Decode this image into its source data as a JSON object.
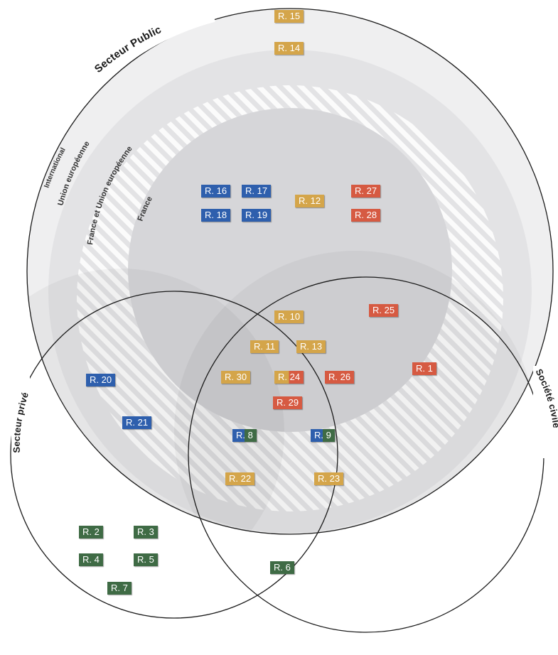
{
  "sets": {
    "public": "Secteur Public",
    "prive": "Secteur privé",
    "civile": "Société civile"
  },
  "levels": {
    "international": "International",
    "ue": "Union européenne",
    "france_ue": "France et Union européenne",
    "france": "France"
  },
  "colors": {
    "yellow": "#d4a54a",
    "blue": "#2e5fad",
    "red": "#d65a42",
    "green": "#3f6b45",
    "ring_outer": "#efeff0",
    "ring_mid": "#e3e3e5",
    "ring_inner": "#d6d6d9"
  },
  "tags": [
    {
      "id": "r15",
      "label": "R. 15",
      "color": "yellow"
    },
    {
      "id": "r14",
      "label": "R. 14",
      "color": "yellow"
    },
    {
      "id": "r16",
      "label": "R. 16",
      "color": "blue"
    },
    {
      "id": "r17",
      "label": "R. 17",
      "color": "blue"
    },
    {
      "id": "r18",
      "label": "R. 18",
      "color": "blue"
    },
    {
      "id": "r19",
      "label": "R. 19",
      "color": "blue"
    },
    {
      "id": "r12",
      "label": "R. 12",
      "color": "yellow"
    },
    {
      "id": "r27",
      "label": "R. 27",
      "color": "red"
    },
    {
      "id": "r28",
      "label": "R. 28",
      "color": "red"
    },
    {
      "id": "r10",
      "label": "R. 10",
      "color": "yellow"
    },
    {
      "id": "r25",
      "label": "R. 25",
      "color": "red"
    },
    {
      "id": "r11",
      "label": "R. 11",
      "color": "yellow"
    },
    {
      "id": "r13",
      "label": "R. 13",
      "color": "yellow"
    },
    {
      "id": "r1",
      "label": "R. 1",
      "color": "red"
    },
    {
      "id": "r20",
      "label": "R. 20",
      "color": "blue"
    },
    {
      "id": "r30",
      "label": "R. 30",
      "color": "yellow"
    },
    {
      "id": "r24",
      "label": "R. 24",
      "color": "yellow-red"
    },
    {
      "id": "r26",
      "label": "R. 26",
      "color": "red"
    },
    {
      "id": "r29",
      "label": "R. 29",
      "color": "red"
    },
    {
      "id": "r21",
      "label": "R. 21",
      "color": "blue"
    },
    {
      "id": "r8",
      "label": "R. 8",
      "color": "blue-green"
    },
    {
      "id": "r9",
      "label": "R. 9",
      "color": "blue-green"
    },
    {
      "id": "r22",
      "label": "R. 22",
      "color": "yellow"
    },
    {
      "id": "r23",
      "label": "R. 23",
      "color": "yellow"
    },
    {
      "id": "r2",
      "label": "R. 2",
      "color": "green"
    },
    {
      "id": "r3",
      "label": "R. 3",
      "color": "green"
    },
    {
      "id": "r4",
      "label": "R. 4",
      "color": "green"
    },
    {
      "id": "r5",
      "label": "R. 5",
      "color": "green"
    },
    {
      "id": "r6",
      "label": "R. 6",
      "color": "green"
    },
    {
      "id": "r7",
      "label": "R. 7",
      "color": "green"
    }
  ]
}
